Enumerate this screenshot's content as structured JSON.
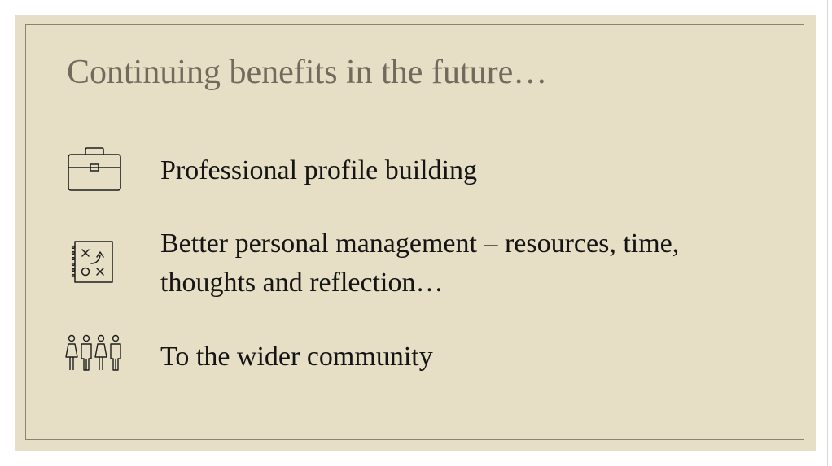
{
  "slide": {
    "title": "Continuing benefits in the future…",
    "items": [
      {
        "icon": "briefcase-icon",
        "text": "Professional profile building"
      },
      {
        "icon": "strategy-notebook-icon",
        "lines": [
          "Better personal management – resources, time,",
          "thoughts and reflection…"
        ]
      },
      {
        "icon": "community-people-icon",
        "text": "To the wider community"
      }
    ]
  },
  "colors": {
    "slide_background": "#e6dec5",
    "frame_border": "#8a8474",
    "title_text": "#736a5d",
    "body_text": "#141414"
  }
}
